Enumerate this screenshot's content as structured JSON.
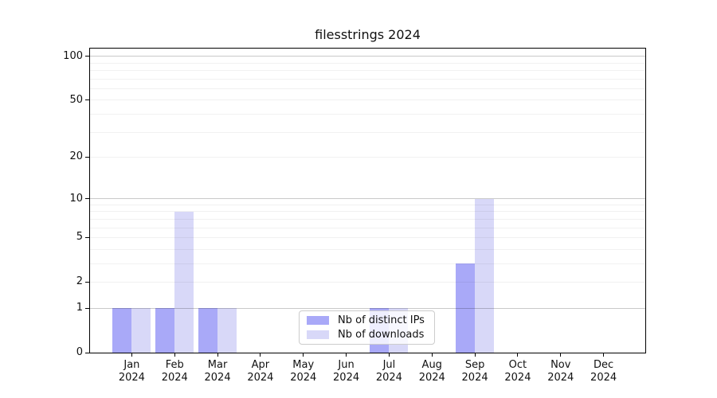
{
  "title": "filesstrings 2024",
  "chart_data": {
    "type": "bar",
    "title": "filesstrings 2024",
    "x_tick_months": [
      "Jan",
      "Feb",
      "Mar",
      "Apr",
      "May",
      "Jun",
      "Jul",
      "Aug",
      "Sep",
      "Oct",
      "Nov",
      "Dec"
    ],
    "x_tick_year": "2024",
    "series": [
      {
        "name": "Nb of distinct IPs",
        "color": "#a9a9f8",
        "values": [
          1,
          1,
          1,
          0,
          0,
          0,
          1,
          0,
          3,
          0,
          0,
          0
        ]
      },
      {
        "name": "Nb of downloads",
        "color": "#d8d8f8",
        "values": [
          1,
          8,
          1,
          0,
          0,
          0,
          1,
          0,
          10,
          0,
          0,
          0
        ]
      }
    ],
    "yscale": "log1p",
    "ylim": [
      0,
      113
    ],
    "yticks": [
      0,
      1,
      2,
      5,
      10,
      20,
      50,
      100
    ],
    "major_gridlines": [
      1,
      10,
      100
    ],
    "minor_gridlines": [
      2,
      3,
      4,
      5,
      6,
      7,
      8,
      9,
      20,
      30,
      40,
      50,
      60,
      70,
      80,
      90
    ],
    "grid": "on",
    "legend_position": "inside-bottom-center"
  },
  "colors": {
    "background": "#ffffff",
    "axis": "#000000",
    "grid_major": "#c9c9c9",
    "grid_minor": "#f0f0f0",
    "series_ips": "#a9a9f8",
    "series_downloads": "#d8d8f8"
  }
}
